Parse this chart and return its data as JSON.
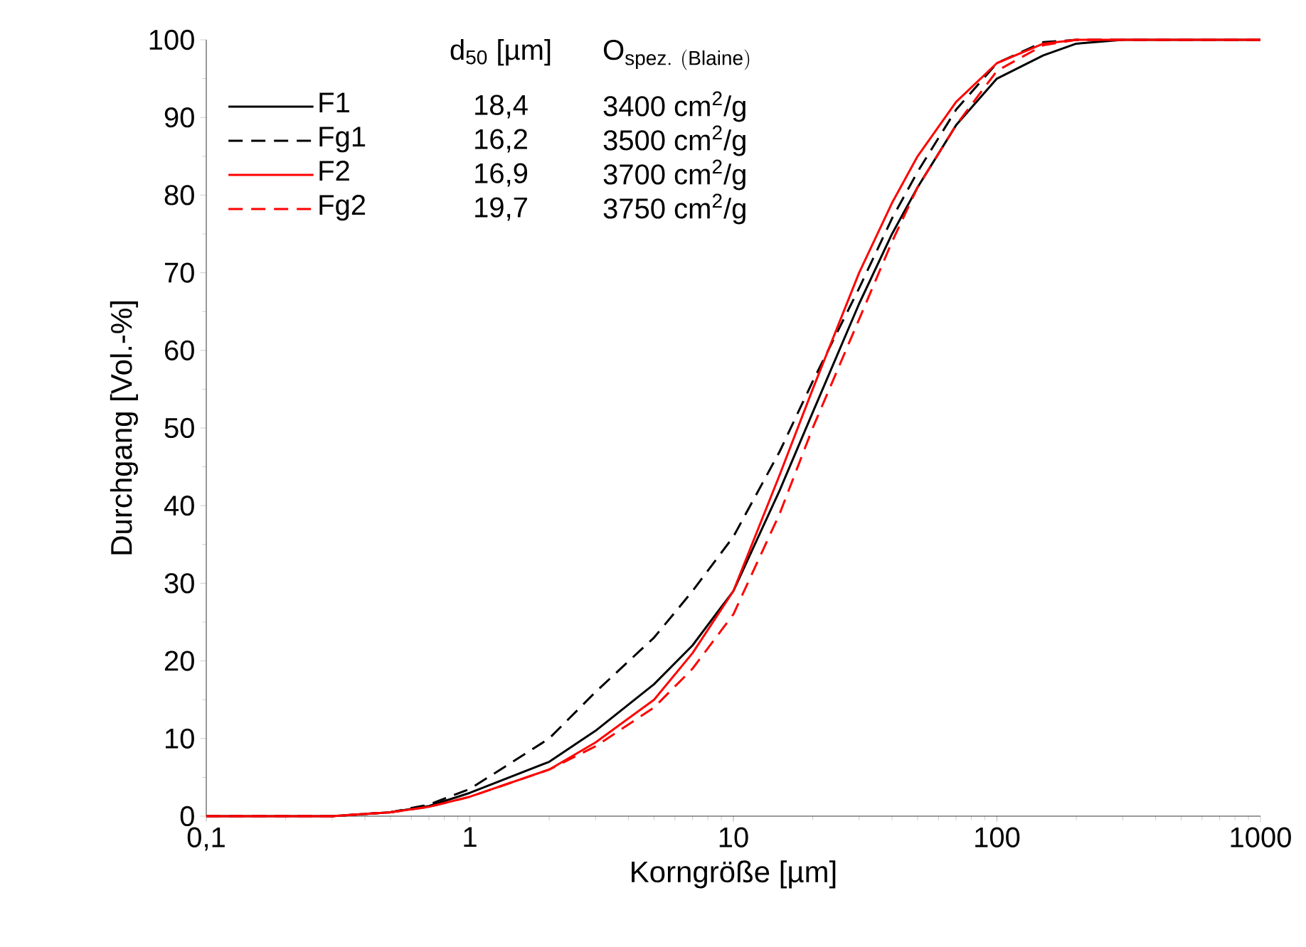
{
  "chart_data": {
    "type": "line",
    "xlabel": "Korngröße [µm]",
    "ylabel": "Durchgang [Vol.-%]",
    "log": "x",
    "xlim": [
      0.1,
      1000
    ],
    "ylim": [
      0,
      100
    ],
    "xticks": [
      {
        "value": 0.1,
        "label": "0,1"
      },
      1,
      10,
      100,
      1000
    ],
    "yticks": [
      0,
      10,
      20,
      30,
      40,
      50,
      60,
      70,
      80,
      90,
      100
    ],
    "legend": "top left",
    "x": [
      0.1,
      0.3,
      0.5,
      0.7,
      1,
      2,
      3,
      5,
      7,
      10,
      15,
      20,
      30,
      40,
      50,
      70,
      100,
      150,
      200,
      300,
      1000
    ],
    "series": [
      {
        "name": "F1",
        "color": "#000000",
        "line_style": "solid",
        "values": [
          0,
          0,
          0.5,
          1.3,
          3,
          7,
          11,
          17,
          22,
          29,
          42,
          52,
          66,
          75,
          81,
          89,
          95,
          98,
          99.5,
          100,
          100
        ]
      },
      {
        "name": "Fg1",
        "color": "#000000",
        "line_style": "dashed",
        "values": [
          0,
          0,
          0.5,
          1.5,
          3.5,
          10,
          16,
          23,
          29,
          36,
          47,
          56,
          68,
          77,
          83,
          91,
          97,
          99.7,
          100,
          100,
          100
        ]
      },
      {
        "name": "F2",
        "color": "#ff0000",
        "line_style": "solid",
        "values": [
          0,
          0,
          0.5,
          1.2,
          2.5,
          6,
          9.5,
          15,
          21,
          29,
          44,
          55,
          70,
          79,
          85,
          92,
          97,
          99.5,
          100,
          100,
          100
        ]
      },
      {
        "name": "Fg2",
        "color": "#ff0000",
        "line_style": "dashed",
        "values": [
          0,
          0,
          0.5,
          1.2,
          2.5,
          6,
          9,
          14,
          19,
          26,
          39,
          50,
          64,
          74,
          81,
          89,
          96,
          99.3,
          100,
          100,
          100
        ]
      }
    ],
    "annotations": [
      "d$_{50}$ [µm]",
      "\\mathrm{O}_{\\mathrm{spez.\\ (Blaine)}}",
      "18,4",
      "3400 cm$^{2}$/g",
      "16,2",
      "3500 cm$^{2}$/g",
      "16,9",
      "3700 cm$^{2}$/g",
      "19,7",
      "3750 cm$^{2}$/g"
    ]
  }
}
